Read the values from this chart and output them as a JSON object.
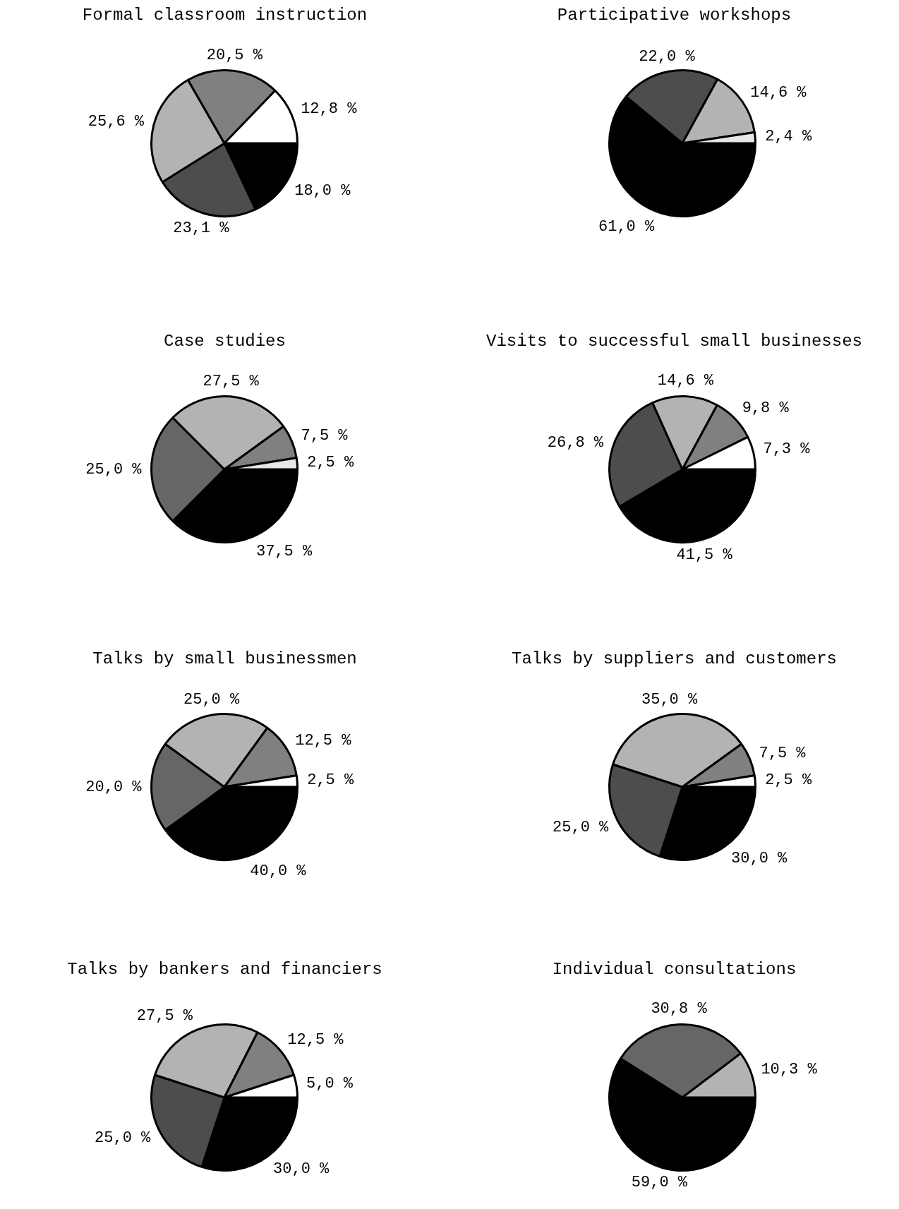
{
  "chart_data": [
    {
      "type": "pie",
      "title": "Formal classroom instruction",
      "categories": [
        null,
        null,
        null,
        null,
        null
      ],
      "values": [
        18.0,
        23.1,
        25.6,
        20.5,
        12.8
      ],
      "colors": [
        "#000000",
        "#4d4d4d",
        "#b3b3b3",
        "#808080",
        "#ffffff"
      ],
      "value_labels": [
        "18,0 %",
        "23,1 %",
        "25,6 %",
        "20,5 %",
        "12,8 %"
      ]
    },
    {
      "type": "pie",
      "title": "Participative workshops",
      "categories": [
        null,
        null,
        null,
        null
      ],
      "values": [
        61.0,
        22.0,
        14.6,
        2.4
      ],
      "colors": [
        "#000000",
        "#4d4d4d",
        "#b3b3b3",
        "#e6e6e6"
      ],
      "value_labels": [
        "61,0 %",
        "22,0 %",
        "14,6 %",
        "2,4 %"
      ]
    },
    {
      "type": "pie",
      "title": "Case studies",
      "categories": [
        null,
        null,
        null,
        null,
        null
      ],
      "values": [
        37.5,
        25.0,
        27.5,
        7.5,
        2.5
      ],
      "colors": [
        "#000000",
        "#666666",
        "#b3b3b3",
        "#808080",
        "#e6e6e6"
      ],
      "value_labels": [
        "37,5 %",
        "25,0 %",
        "27,5 %",
        "7,5 %",
        "2,5 %"
      ]
    },
    {
      "type": "pie",
      "title": "Visits to successful small businesses",
      "categories": [
        null,
        null,
        null,
        null,
        null
      ],
      "values": [
        41.5,
        26.8,
        14.6,
        9.8,
        7.3
      ],
      "colors": [
        "#000000",
        "#4d4d4d",
        "#b3b3b3",
        "#808080",
        "#ffffff"
      ],
      "value_labels": [
        "41,5 %",
        "26,8 %",
        "14,6 %",
        "9,8 %",
        "7,3 %"
      ]
    },
    {
      "type": "pie",
      "title": "Talks by small businessmen",
      "categories": [
        null,
        null,
        null,
        null,
        null
      ],
      "values": [
        40.0,
        20.0,
        25.0,
        12.5,
        2.5
      ],
      "colors": [
        "#000000",
        "#666666",
        "#b3b3b3",
        "#808080",
        "#ffffff"
      ],
      "value_labels": [
        "40,0 %",
        "20,0 %",
        "25,0 %",
        "12,5 %",
        "2,5 %"
      ]
    },
    {
      "type": "pie",
      "title": "Talks by suppliers and customers",
      "categories": [
        null,
        null,
        null,
        null,
        null
      ],
      "values": [
        30.0,
        25.0,
        35.0,
        7.5,
        2.5
      ],
      "colors": [
        "#000000",
        "#4d4d4d",
        "#b3b3b3",
        "#808080",
        "#ffffff"
      ],
      "value_labels": [
        "30,0 %",
        "25,0 %",
        "35,0 %",
        "7,5 %",
        "2,5 %"
      ]
    },
    {
      "type": "pie",
      "title": "Talks by bankers and financiers",
      "categories": [
        null,
        null,
        null,
        null,
        null
      ],
      "values": [
        30.0,
        25.0,
        27.5,
        12.5,
        5.0
      ],
      "colors": [
        "#000000",
        "#4d4d4d",
        "#b3b3b3",
        "#808080",
        "#ffffff"
      ],
      "value_labels": [
        "30,0 %",
        "25,0 %",
        "27,5 %",
        "12,5 %",
        "5,0 %"
      ]
    },
    {
      "type": "pie",
      "title": "Individual consultations",
      "categories": [
        null,
        null,
        null
      ],
      "values": [
        59.0,
        30.8,
        10.3
      ],
      "colors": [
        "#000000",
        "#666666",
        "#b3b3b3"
      ],
      "value_labels": [
        "59,0 %",
        "30,8 %",
        "10,3 %"
      ]
    }
  ]
}
